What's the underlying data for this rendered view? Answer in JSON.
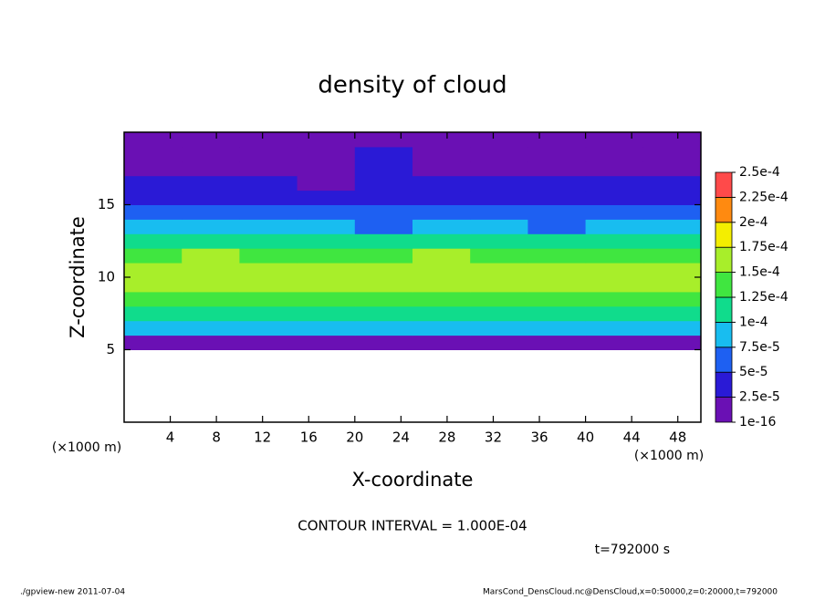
{
  "chart_data": {
    "type": "heatmap",
    "title": "density of cloud",
    "x_label": "X-coordinate",
    "y_label": "Z-coordinate",
    "x_unit": "(×1000 m)",
    "y_unit": "(×1000 m)",
    "contour_note": "CONTOUR INTERVAL = 1.000E-04",
    "time_note": "t=792000 s",
    "footer_left": "./gpview-new   2011-07-04",
    "footer_right": "MarsCond_DensCloud.nc@DensCloud,x=0:50000,z=0:20000,t=792000",
    "xlim": [
      0,
      50
    ],
    "ylim": [
      0,
      20
    ],
    "xticks": [
      4,
      8,
      12,
      16,
      20,
      24,
      28,
      32,
      36,
      40,
      44,
      48
    ],
    "yticks": [
      5,
      10,
      15
    ],
    "x_edges": [
      0,
      5,
      10,
      15,
      20,
      25,
      30,
      35,
      40,
      45,
      50
    ],
    "y_edges": [
      0,
      1,
      2,
      3,
      4,
      5,
      6,
      7,
      8,
      9,
      10,
      11,
      12,
      13,
      14,
      15,
      16,
      17,
      18,
      19,
      20
    ],
    "values": [
      [
        null,
        null,
        null,
        null,
        null,
        null,
        null,
        null,
        null,
        null
      ],
      [
        null,
        null,
        null,
        null,
        null,
        null,
        null,
        null,
        null,
        null
      ],
      [
        null,
        null,
        null,
        null,
        null,
        null,
        null,
        null,
        null,
        null
      ],
      [
        null,
        null,
        null,
        null,
        null,
        null,
        null,
        null,
        null,
        null
      ],
      [
        null,
        null,
        null,
        null,
        null,
        null,
        null,
        null,
        null,
        null
      ],
      [
        1.2e-05,
        1e-05,
        1.1e-05,
        1.3e-05,
        1e-05,
        1.2e-05,
        1.1e-05,
        1e-05,
        1.2e-05,
        1.1e-05
      ],
      [
        7.8e-05,
        8.2e-05,
        8e-05,
        7.6e-05,
        8.4e-05,
        7.9e-05,
        8.1e-05,
        7.7e-05,
        8.3e-05,
        8e-05
      ],
      [
        0.000108,
        0.000112,
        0.000105,
        0.00011,
        0.000114,
        0.000107,
        0.000111,
        0.000109,
        0.000106,
        0.00011
      ],
      [
        0.000142,
        0.000138,
        0.000145,
        0.00014,
        0.000136,
        0.000144,
        0.000141,
        0.000139,
        0.000143,
        0.000137
      ],
      [
        0.000162,
        0.000168,
        0.000158,
        0.000164,
        0.000155,
        0.00017,
        0.000166,
        0.00016,
        0.000157,
        0.000163
      ],
      [
        0.000166,
        0.000172,
        0.00016,
        0.000165,
        0.000158,
        0.000174,
        0.000168,
        0.000162,
        0.000155,
        0.000161
      ],
      [
        0.000146,
        0.00015,
        0.000144,
        0.000142,
        0.00014,
        0.000152,
        0.000147,
        0.000143,
        0.000138,
        0.000145
      ],
      [
        0.000105,
        0.00011,
        0.000108,
        0.000112,
        0.000106,
        0.000109,
        0.000111,
        0.000104,
        0.000107,
        0.000102
      ],
      [
        7.8e-05,
        8.2e-05,
        7.6e-05,
        7.9e-05,
        7.2e-05,
        8.1e-05,
        7.7e-05,
        7.4e-05,
        7.5e-05,
        7.8e-05
      ],
      [
        5.8e-05,
        6.2e-05,
        5.6e-05,
        5.9e-05,
        5e-05,
        6.1e-05,
        5.7e-05,
        5.4e-05,
        5.2e-05,
        5.5e-05
      ],
      [
        4e-05,
        4.2e-05,
        3.8e-05,
        3.6e-05,
        3.2e-05,
        4.1e-05,
        3.9e-05,
        3.7e-05,
        3.5e-05,
        3.8e-05
      ],
      [
        2.8e-05,
        3e-05,
        2.6e-05,
        2.4e-05,
        2.7e-05,
        2.9e-05,
        2.6e-05,
        2.5e-05,
        2.8e-05,
        2.6e-05
      ],
      [
        2.2e-05,
        2.4e-05,
        2e-05,
        1.8e-05,
        2.6e-05,
        2.1e-05,
        1.9e-05,
        2e-05,
        2.3e-05,
        2.1e-05
      ],
      [
        1e-05,
        1.2e-05,
        1.1e-05,
        1e-05,
        2.6e-05,
        2e-05,
        1e-05,
        1.1e-05,
        1e-05,
        1.2e-05
      ],
      [
        5e-06,
        6e-06,
        5e-06,
        4e-06,
        1e-05,
        8e-06,
        5e-06,
        6e-06,
        5e-06,
        4e-06
      ]
    ],
    "levels": [
      {
        "value": 1e-16,
        "label": "1e-16"
      },
      {
        "value": 2.5e-05,
        "label": "2.5e-5"
      },
      {
        "value": 5e-05,
        "label": "5e-5"
      },
      {
        "value": 7.5e-05,
        "label": "7.5e-5"
      },
      {
        "value": 0.0001,
        "label": "1e-4"
      },
      {
        "value": 0.000125,
        "label": "1.25e-4"
      },
      {
        "value": 0.00015,
        "label": "1.5e-4"
      },
      {
        "value": 0.000175,
        "label": "1.75e-4"
      },
      {
        "value": 0.0002,
        "label": "2e-4"
      },
      {
        "value": 0.000225,
        "label": "2.25e-4"
      },
      {
        "value": 0.00025,
        "label": "2.5e-4"
      }
    ],
    "colors": [
      "#6a10b4",
      "#2a1ad6",
      "#1e60f2",
      "#18bdf0",
      "#10dc8c",
      "#40e640",
      "#a8ee2a",
      "#f4ee00",
      "#ff8a10",
      "#ff4a4a"
    ]
  }
}
